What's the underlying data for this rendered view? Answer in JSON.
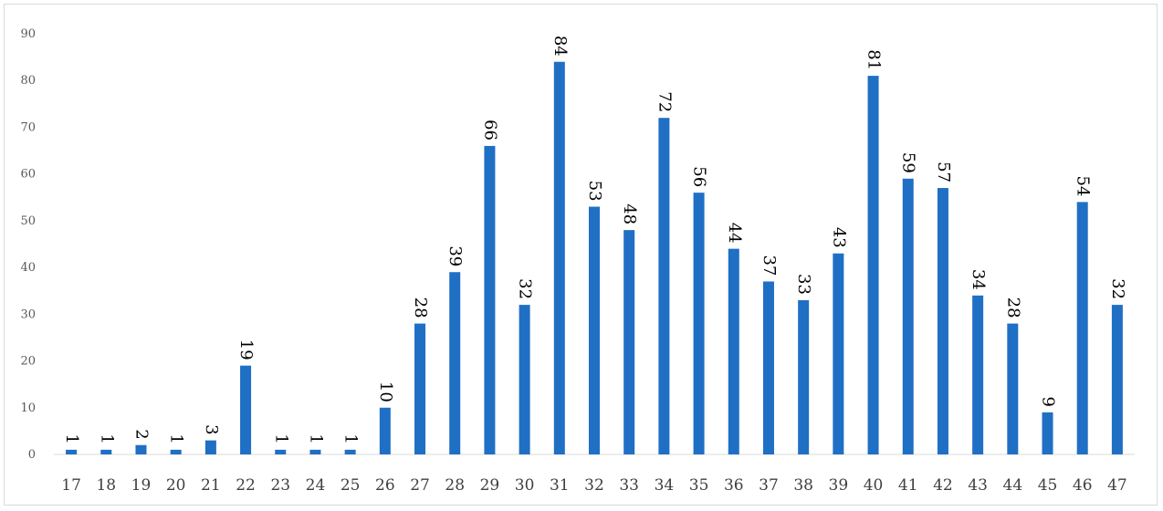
{
  "chart_data": {
    "type": "bar",
    "title": "",
    "xlabel": "",
    "ylabel": "",
    "categories": [
      "17",
      "18",
      "19",
      "20",
      "21",
      "22",
      "23",
      "24",
      "25",
      "26",
      "27",
      "28",
      "29",
      "30",
      "31",
      "32",
      "33",
      "34",
      "35",
      "36",
      "37",
      "38",
      "39",
      "40",
      "41",
      "42",
      "43",
      "44",
      "45",
      "46",
      "47"
    ],
    "values": [
      1,
      1,
      2,
      1,
      3,
      19,
      1,
      1,
      1,
      10,
      28,
      39,
      66,
      32,
      84,
      53,
      48,
      72,
      56,
      44,
      37,
      33,
      43,
      81,
      59,
      57,
      34,
      28,
      9,
      54,
      32
    ],
    "data_labels": [
      "1",
      "1",
      "2",
      "1",
      "3",
      "19",
      "1",
      "1",
      "1",
      "10",
      "28",
      "39",
      "66",
      "32",
      "84",
      "53",
      "48",
      "72",
      "56",
      "44",
      "37",
      "33",
      "43",
      "81",
      "59",
      "57",
      "34",
      "28",
      "9",
      "54",
      "32"
    ],
    "ylim": [
      0,
      90
    ],
    "yticks": [
      "0",
      "10",
      "20",
      "30",
      "40",
      "50",
      "60",
      "70",
      "80",
      "90"
    ],
    "grid": false,
    "legend": "none",
    "data_label_rotation": "rotated 90° clockwise",
    "colors": {
      "bar": "#1f6fc5",
      "axis": "#d9d9d9"
    }
  }
}
